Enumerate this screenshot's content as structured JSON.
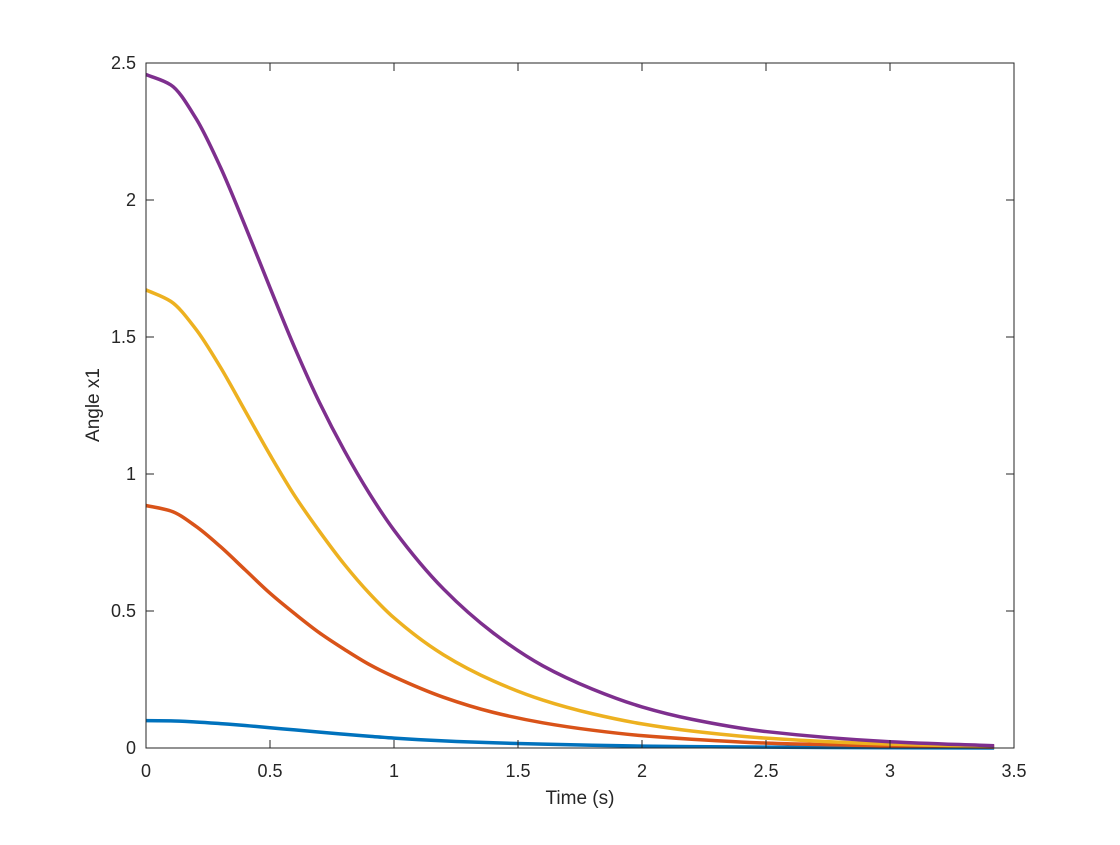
{
  "chart_data": {
    "type": "line",
    "title": "",
    "xlabel": "Time (s)",
    "ylabel": "Angle x1",
    "xlim": [
      0,
      3.5
    ],
    "ylim": [
      0,
      2.5
    ],
    "xticks": [
      0,
      0.5,
      1,
      1.5,
      2,
      2.5,
      3,
      3.5
    ],
    "xtick_labels": [
      "0",
      "0.5",
      "1",
      "1.5",
      "2",
      "2.5",
      "3",
      "3.5"
    ],
    "yticks": [
      0,
      0.5,
      1,
      1.5,
      2,
      2.5
    ],
    "ytick_labels": [
      "0",
      "0.5",
      "1",
      "1.5",
      "2",
      "2.5"
    ],
    "grid": false,
    "legend": "none",
    "series": [
      {
        "color": "#0072BD",
        "x": [
          0,
          0.1,
          0.2,
          0.3,
          0.4,
          0.5,
          0.6,
          0.7,
          0.8,
          0.9,
          1.0,
          1.2,
          1.4,
          1.6,
          1.8,
          2.0,
          2.2,
          2.5,
          3.0,
          3.42
        ],
        "y": [
          0.1,
          0.099,
          0.095,
          0.089,
          0.082,
          0.074,
          0.066,
          0.058,
          0.05,
          0.043,
          0.036,
          0.026,
          0.019,
          0.014,
          0.01,
          0.007,
          0.005,
          0.003,
          0.001,
          0.0
        ]
      },
      {
        "color": "#D95319",
        "x": [
          0,
          0.1,
          0.2,
          0.3,
          0.4,
          0.5,
          0.6,
          0.7,
          0.8,
          0.9,
          1.0,
          1.2,
          1.4,
          1.6,
          1.8,
          2.0,
          2.2,
          2.5,
          3.0,
          3.42
        ],
        "y": [
          0.885,
          0.865,
          0.81,
          0.735,
          0.65,
          0.565,
          0.49,
          0.42,
          0.36,
          0.305,
          0.26,
          0.185,
          0.13,
          0.092,
          0.065,
          0.045,
          0.032,
          0.018,
          0.008,
          0.003
        ]
      },
      {
        "color": "#EDB120",
        "x": [
          0,
          0.1,
          0.2,
          0.3,
          0.4,
          0.5,
          0.6,
          0.7,
          0.8,
          0.9,
          1.0,
          1.2,
          1.4,
          1.6,
          1.8,
          2.0,
          2.2,
          2.5,
          3.0,
          3.42
        ],
        "y": [
          1.672,
          1.63,
          1.53,
          1.39,
          1.23,
          1.07,
          0.92,
          0.79,
          0.67,
          0.565,
          0.475,
          0.34,
          0.245,
          0.175,
          0.125,
          0.088,
          0.062,
          0.036,
          0.014,
          0.005
        ]
      },
      {
        "color": "#7E2F8E",
        "x": [
          0,
          0.1,
          0.2,
          0.3,
          0.4,
          0.5,
          0.6,
          0.7,
          0.8,
          0.9,
          1.0,
          1.2,
          1.4,
          1.6,
          1.8,
          2.0,
          2.2,
          2.5,
          3.0,
          3.42
        ],
        "y": [
          2.458,
          2.42,
          2.3,
          2.12,
          1.905,
          1.68,
          1.46,
          1.26,
          1.085,
          0.93,
          0.795,
          0.58,
          0.42,
          0.3,
          0.215,
          0.15,
          0.105,
          0.06,
          0.023,
          0.008
        ]
      }
    ]
  }
}
